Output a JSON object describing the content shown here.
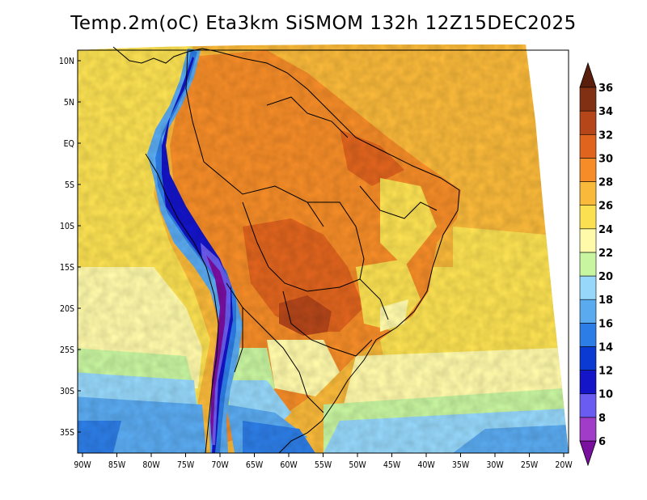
{
  "title": "Temp.2m(oC) Eta3km SiSMOM 132h 12Z15DEC2025",
  "map": {
    "variable": "Temp.2m",
    "units": "oC",
    "model": "Eta3km SiSMOM",
    "lead_time": "132h",
    "valid_time": "12Z15DEC2025",
    "lat_labels": [
      "10N",
      "5N",
      "EQ",
      "5S",
      "10S",
      "15S",
      "20S",
      "25S",
      "30S",
      "35S"
    ],
    "lon_labels": [
      "90W",
      "85W",
      "80W",
      "75W",
      "70W",
      "65W",
      "60W",
      "55W",
      "50W",
      "45W",
      "40W",
      "35W",
      "30W",
      "25W",
      "20W"
    ]
  },
  "colorbar": {
    "levels": [
      "6",
      "8",
      "10",
      "12",
      "14",
      "16",
      "18",
      "20",
      "22",
      "24",
      "26",
      "28",
      "30",
      "32",
      "34",
      "36"
    ],
    "colors": [
      "#7a0fa0",
      "#a03cc8",
      "#6a5cf0",
      "#1414c8",
      "#0a3ad2",
      "#2d7de6",
      "#5aaaf0",
      "#96d7fa",
      "#c8f5a0",
      "#fffaaa",
      "#fbe152",
      "#f9b93a",
      "#f58c28",
      "#e0641e",
      "#b4461a",
      "#823014",
      "#5a1e0c"
    ],
    "bottom_arrow_color": "#5a1090",
    "top_arrow_color": "#5a1e0c"
  }
}
